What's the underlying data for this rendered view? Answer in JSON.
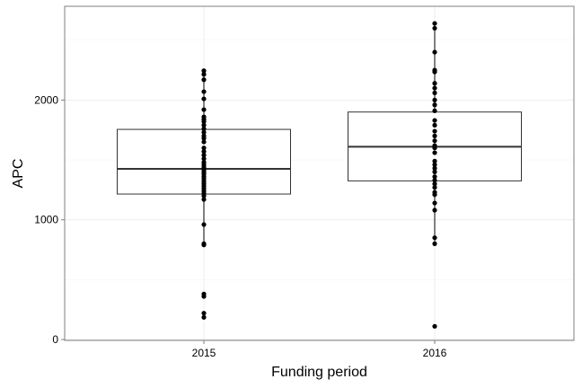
{
  "chart_data": {
    "type": "boxplot",
    "xlabel": "Funding period",
    "ylabel": "APC",
    "ylim": [
      0,
      2800
    ],
    "y_ticks": [
      0,
      1000,
      2000
    ],
    "y_tick_labels": [
      "0",
      "1000",
      "2000"
    ],
    "categories": [
      "2015",
      "2016"
    ],
    "grid": true,
    "boxes": [
      {
        "category": "2015",
        "q1": 1215,
        "median": 1425,
        "q3": 1755,
        "whisker_low": 790,
        "whisker_high": 2245,
        "points": [
          2245,
          2215,
          2170,
          2070,
          2010,
          1920,
          1860,
          1840,
          1820,
          1790,
          1760,
          1730,
          1700,
          1680,
          1650,
          1600,
          1570,
          1540,
          1510,
          1480,
          1460,
          1440,
          1425,
          1410,
          1395,
          1380,
          1360,
          1340,
          1320,
          1300,
          1280,
          1260,
          1240,
          1220,
          1200,
          1170,
          960,
          800,
          790,
          380,
          360,
          220,
          185
        ]
      },
      {
        "category": "2016",
        "q1": 1325,
        "median": 1610,
        "q3": 1900,
        "whisker_low": 790,
        "whisker_high": 2640,
        "points": [
          2640,
          2600,
          2400,
          2250,
          2235,
          2140,
          2100,
          2060,
          2000,
          1960,
          1910,
          1830,
          1790,
          1740,
          1700,
          1660,
          1620,
          1600,
          1560,
          1490,
          1460,
          1430,
          1400,
          1360,
          1330,
          1300,
          1270,
          1230,
          1210,
          1140,
          1080,
          850,
          800,
          110
        ]
      }
    ]
  }
}
